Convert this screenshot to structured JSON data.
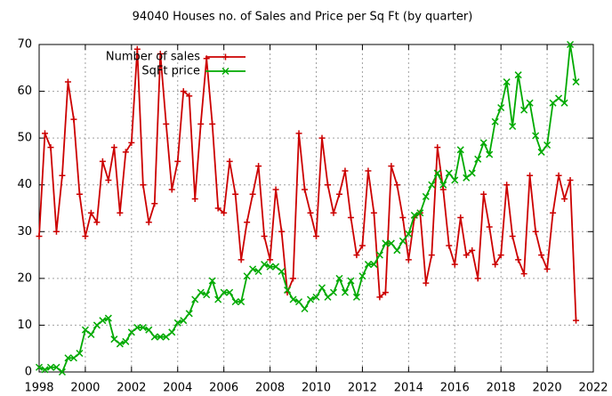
{
  "chart_data": {
    "type": "line",
    "title": "94040 Houses no. of Sales and Price per Sq Ft (by quarter)",
    "x": [
      1998,
      1998.25,
      1998.5,
      1998.75,
      1999,
      1999.25,
      1999.5,
      1999.75,
      2000,
      2000.25,
      2000.5,
      2000.75,
      2001,
      2001.25,
      2001.5,
      2001.75,
      2002,
      2002.25,
      2002.5,
      2002.75,
      2003,
      2003.25,
      2003.5,
      2003.75,
      2004,
      2004.25,
      2004.5,
      2004.75,
      2005,
      2005.25,
      2005.5,
      2005.75,
      2006,
      2006.25,
      2006.5,
      2006.75,
      2007,
      2007.25,
      2007.5,
      2007.75,
      2008,
      2008.25,
      2008.5,
      2008.75,
      2009,
      2009.25,
      2009.5,
      2009.75,
      2010,
      2010.25,
      2010.5,
      2010.75,
      2011,
      2011.25,
      2011.5,
      2011.75,
      2012,
      2012.25,
      2012.5,
      2012.75,
      2013,
      2013.25,
      2013.5,
      2013.75,
      2014,
      2014.25,
      2014.5,
      2014.75,
      2015,
      2015.25,
      2015.5,
      2015.75,
      2016,
      2016.25,
      2016.5,
      2016.75,
      2017,
      2017.25,
      2017.5,
      2017.75,
      2018,
      2018.25,
      2018.5,
      2018.75,
      2019,
      2019.25,
      2019.5,
      2019.75,
      2020,
      2020.25,
      2020.5,
      2020.75,
      2021,
      2021.25
    ],
    "series": [
      {
        "name": "Number of sales",
        "color": "#cc0000",
        "marker": "plus",
        "values": [
          29,
          51,
          48,
          30,
          42,
          62,
          54,
          38,
          29,
          34,
          32,
          45,
          41,
          48,
          34,
          47,
          49,
          69,
          40,
          32,
          36,
          68,
          53,
          39,
          45,
          60,
          59,
          37,
          53,
          67,
          53,
          35,
          34,
          45,
          38,
          24,
          32,
          38,
          44,
          29,
          24,
          39,
          30,
          17,
          20,
          51,
          39,
          34,
          29,
          50,
          40,
          34,
          38,
          43,
          33,
          25,
          27,
          43,
          34,
          16,
          17,
          44,
          40,
          33,
          24,
          33,
          34,
          19,
          25,
          48,
          39,
          27,
          23,
          33,
          25,
          26,
          20,
          38,
          31,
          23,
          25,
          40,
          29,
          24,
          21,
          42,
          30,
          25,
          22,
          34,
          42,
          37,
          41,
          11
        ]
      },
      {
        "name": "SqFt price",
        "color": "#00aa00",
        "marker": "cross",
        "values": [
          1,
          0.5,
          1,
          1,
          0,
          3,
          3,
          4,
          9,
          8,
          10,
          11,
          11.5,
          7,
          6,
          6.5,
          8.5,
          9.5,
          9.5,
          9,
          7.5,
          7.5,
          7.5,
          8.5,
          10.5,
          11,
          12.5,
          15.5,
          17,
          16.5,
          19.5,
          15.5,
          17,
          17,
          15,
          15,
          20.5,
          22,
          21.5,
          23,
          22.5,
          22.5,
          21.5,
          17.5,
          15.5,
          15,
          13.5,
          15.5,
          16,
          18,
          16,
          17,
          20,
          17,
          19.5,
          16,
          20.5,
          23,
          23,
          25,
          27.5,
          27.5,
          26,
          28,
          29.5,
          33.5,
          34,
          37.5,
          40,
          42.5,
          40,
          42.5,
          41,
          47.5,
          41.5,
          42.5,
          45.5,
          49,
          46.5,
          53.5,
          56.5,
          62,
          52.5,
          63.5,
          56,
          57.5,
          50.5,
          47,
          48.5,
          57.5,
          58.5,
          57.5,
          70,
          62
        ]
      }
    ],
    "xlim": [
      1998,
      2022
    ],
    "xticks": [
      1998,
      2000,
      2002,
      2004,
      2006,
      2008,
      2010,
      2012,
      2014,
      2016,
      2018,
      2020,
      2022
    ],
    "ylim": [
      0,
      70
    ],
    "yticks": [
      0,
      10,
      20,
      30,
      40,
      50,
      60,
      70
    ],
    "grid": true,
    "legend": "top-left"
  }
}
